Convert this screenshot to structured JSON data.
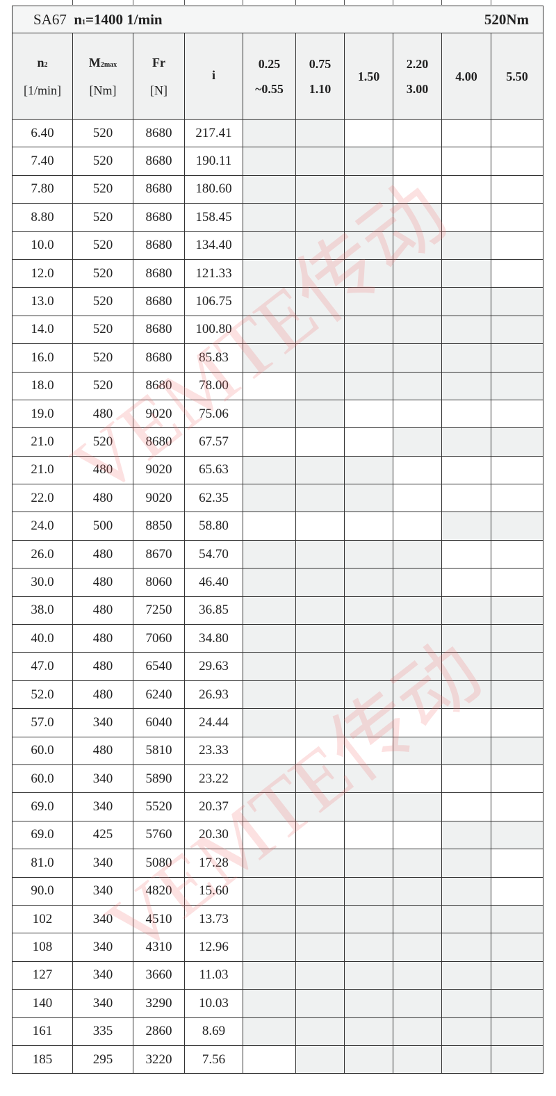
{
  "title": {
    "model": "SA67",
    "speed_label": "n",
    "speed_sub": "1",
    "speed_value": "=1400 1/min",
    "torque": "520Nm"
  },
  "headers": [
    {
      "main": "n",
      "sub": "2",
      "unit": "[1/min]"
    },
    {
      "main": "M",
      "sub": "2max",
      "unit": "[Nm]"
    },
    {
      "main": "Fr",
      "sub": "",
      "unit": "[N]"
    },
    {
      "main": "i",
      "sub": "",
      "unit": ""
    }
  ],
  "power_headers": [
    {
      "line1": "0.25",
      "line2": "~0.55"
    },
    {
      "line1": "0.75",
      "line2": "1.10"
    },
    {
      "line1": "1.50",
      "line2": ""
    },
    {
      "line1": "2.20",
      "line2": "3.00"
    },
    {
      "line1": "4.00",
      "line2": ""
    },
    {
      "line1": "5.50",
      "line2": ""
    }
  ],
  "colors": {
    "shaded": "#eff1f1",
    "watermark": "#f07878"
  },
  "watermark": "VEMTE传动",
  "rows": [
    {
      "n2": "6.40",
      "m2": "520",
      "fr": "8680",
      "i": "217.41",
      "shade": [
        1,
        1,
        0,
        0,
        0,
        0
      ]
    },
    {
      "n2": "7.40",
      "m2": "520",
      "fr": "8680",
      "i": "190.11",
      "shade": [
        1,
        1,
        1,
        0,
        0,
        0
      ]
    },
    {
      "n2": "7.80",
      "m2": "520",
      "fr": "8680",
      "i": "180.60",
      "shade": [
        1,
        1,
        1,
        0,
        0,
        0
      ]
    },
    {
      "n2": "8.80",
      "m2": "520",
      "fr": "8680",
      "i": "158.45",
      "shade": [
        1,
        1,
        1,
        1,
        0,
        0
      ]
    },
    {
      "n2": "10.0",
      "m2": "520",
      "fr": "8680",
      "i": "134.40",
      "shade": [
        1,
        1,
        1,
        1,
        1,
        0
      ]
    },
    {
      "n2": "12.0",
      "m2": "520",
      "fr": "8680",
      "i": "121.33",
      "shade": [
        1,
        1,
        1,
        1,
        1,
        0
      ]
    },
    {
      "n2": "13.0",
      "m2": "520",
      "fr": "8680",
      "i": "106.75",
      "shade": [
        1,
        1,
        1,
        1,
        1,
        1
      ]
    },
    {
      "n2": "14.0",
      "m2": "520",
      "fr": "8680",
      "i": "100.80",
      "shade": [
        1,
        1,
        1,
        1,
        1,
        1
      ]
    },
    {
      "n2": "16.0",
      "m2": "520",
      "fr": "8680",
      "i": "85.83",
      "shade": [
        1,
        1,
        1,
        1,
        1,
        1
      ]
    },
    {
      "n2": "18.0",
      "m2": "520",
      "fr": "8680",
      "i": "78.00",
      "shade": [
        0,
        1,
        1,
        1,
        1,
        1
      ]
    },
    {
      "n2": "19.0",
      "m2": "480",
      "fr": "9020",
      "i": "75.06",
      "shade": [
        1,
        1,
        0,
        0,
        0,
        0
      ]
    },
    {
      "n2": "21.0",
      "m2": "520",
      "fr": "8680",
      "i": "67.57",
      "shade": [
        0,
        0,
        0,
        1,
        1,
        1
      ]
    },
    {
      "n2": "21.0",
      "m2": "480",
      "fr": "9020",
      "i": "65.63",
      "shade": [
        1,
        1,
        1,
        0,
        0,
        0
      ]
    },
    {
      "n2": "22.0",
      "m2": "480",
      "fr": "9020",
      "i": "62.35",
      "shade": [
        1,
        1,
        1,
        0,
        0,
        0
      ]
    },
    {
      "n2": "24.0",
      "m2": "500",
      "fr": "8850",
      "i": "58.80",
      "shade": [
        0,
        0,
        0,
        0,
        1,
        1
      ]
    },
    {
      "n2": "26.0",
      "m2": "480",
      "fr": "8670",
      "i": "54.70",
      "shade": [
        1,
        1,
        1,
        1,
        0,
        0
      ]
    },
    {
      "n2": "30.0",
      "m2": "480",
      "fr": "8060",
      "i": "46.40",
      "shade": [
        1,
        1,
        1,
        1,
        0,
        0
      ]
    },
    {
      "n2": "38.0",
      "m2": "480",
      "fr": "7250",
      "i": "36.85",
      "shade": [
        1,
        1,
        1,
        1,
        1,
        1
      ]
    },
    {
      "n2": "40.0",
      "m2": "480",
      "fr": "7060",
      "i": "34.80",
      "shade": [
        1,
        1,
        1,
        1,
        1,
        1
      ]
    },
    {
      "n2": "47.0",
      "m2": "480",
      "fr": "6540",
      "i": "29.63",
      "shade": [
        1,
        1,
        1,
        1,
        1,
        1
      ]
    },
    {
      "n2": "52.0",
      "m2": "480",
      "fr": "6240",
      "i": "26.93",
      "shade": [
        1,
        1,
        1,
        1,
        1,
        1
      ]
    },
    {
      "n2": "57.0",
      "m2": "340",
      "fr": "6040",
      "i": "24.44",
      "shade": [
        1,
        1,
        1,
        0,
        0,
        0
      ]
    },
    {
      "n2": "60.0",
      "m2": "480",
      "fr": "5810",
      "i": "23.33",
      "shade": [
        0,
        0,
        0,
        1,
        1,
        1
      ]
    },
    {
      "n2": "60.0",
      "m2": "340",
      "fr": "5890",
      "i": "23.22",
      "shade": [
        1,
        1,
        1,
        0,
        0,
        0
      ]
    },
    {
      "n2": "69.0",
      "m2": "340",
      "fr": "5520",
      "i": "20.37",
      "shade": [
        1,
        1,
        1,
        1,
        0,
        0
      ]
    },
    {
      "n2": "69.0",
      "m2": "425",
      "fr": "5760",
      "i": "20.30",
      "shade": [
        0,
        0,
        0,
        0,
        1,
        1
      ]
    },
    {
      "n2": "81.0",
      "m2": "340",
      "fr": "5080",
      "i": "17.28",
      "shade": [
        1,
        1,
        1,
        1,
        1,
        0
      ]
    },
    {
      "n2": "90.0",
      "m2": "340",
      "fr": "4820",
      "i": "15.60",
      "shade": [
        1,
        1,
        1,
        1,
        1,
        0
      ]
    },
    {
      "n2": "102",
      "m2": "340",
      "fr": "4510",
      "i": "13.73",
      "shade": [
        1,
        1,
        1,
        1,
        1,
        1
      ]
    },
    {
      "n2": "108",
      "m2": "340",
      "fr": "4310",
      "i": "12.96",
      "shade": [
        1,
        1,
        1,
        1,
        1,
        1
      ]
    },
    {
      "n2": "127",
      "m2": "340",
      "fr": "3660",
      "i": "11.03",
      "shade": [
        1,
        1,
        1,
        1,
        1,
        1
      ]
    },
    {
      "n2": "140",
      "m2": "340",
      "fr": "3290",
      "i": "10.03",
      "shade": [
        1,
        1,
        1,
        1,
        1,
        1
      ]
    },
    {
      "n2": "161",
      "m2": "335",
      "fr": "2860",
      "i": "8.69",
      "shade": [
        1,
        1,
        1,
        1,
        1,
        1
      ]
    },
    {
      "n2": "185",
      "m2": "295",
      "fr": "3220",
      "i": "7.56",
      "shade": [
        0,
        1,
        1,
        1,
        1,
        1
      ]
    }
  ]
}
